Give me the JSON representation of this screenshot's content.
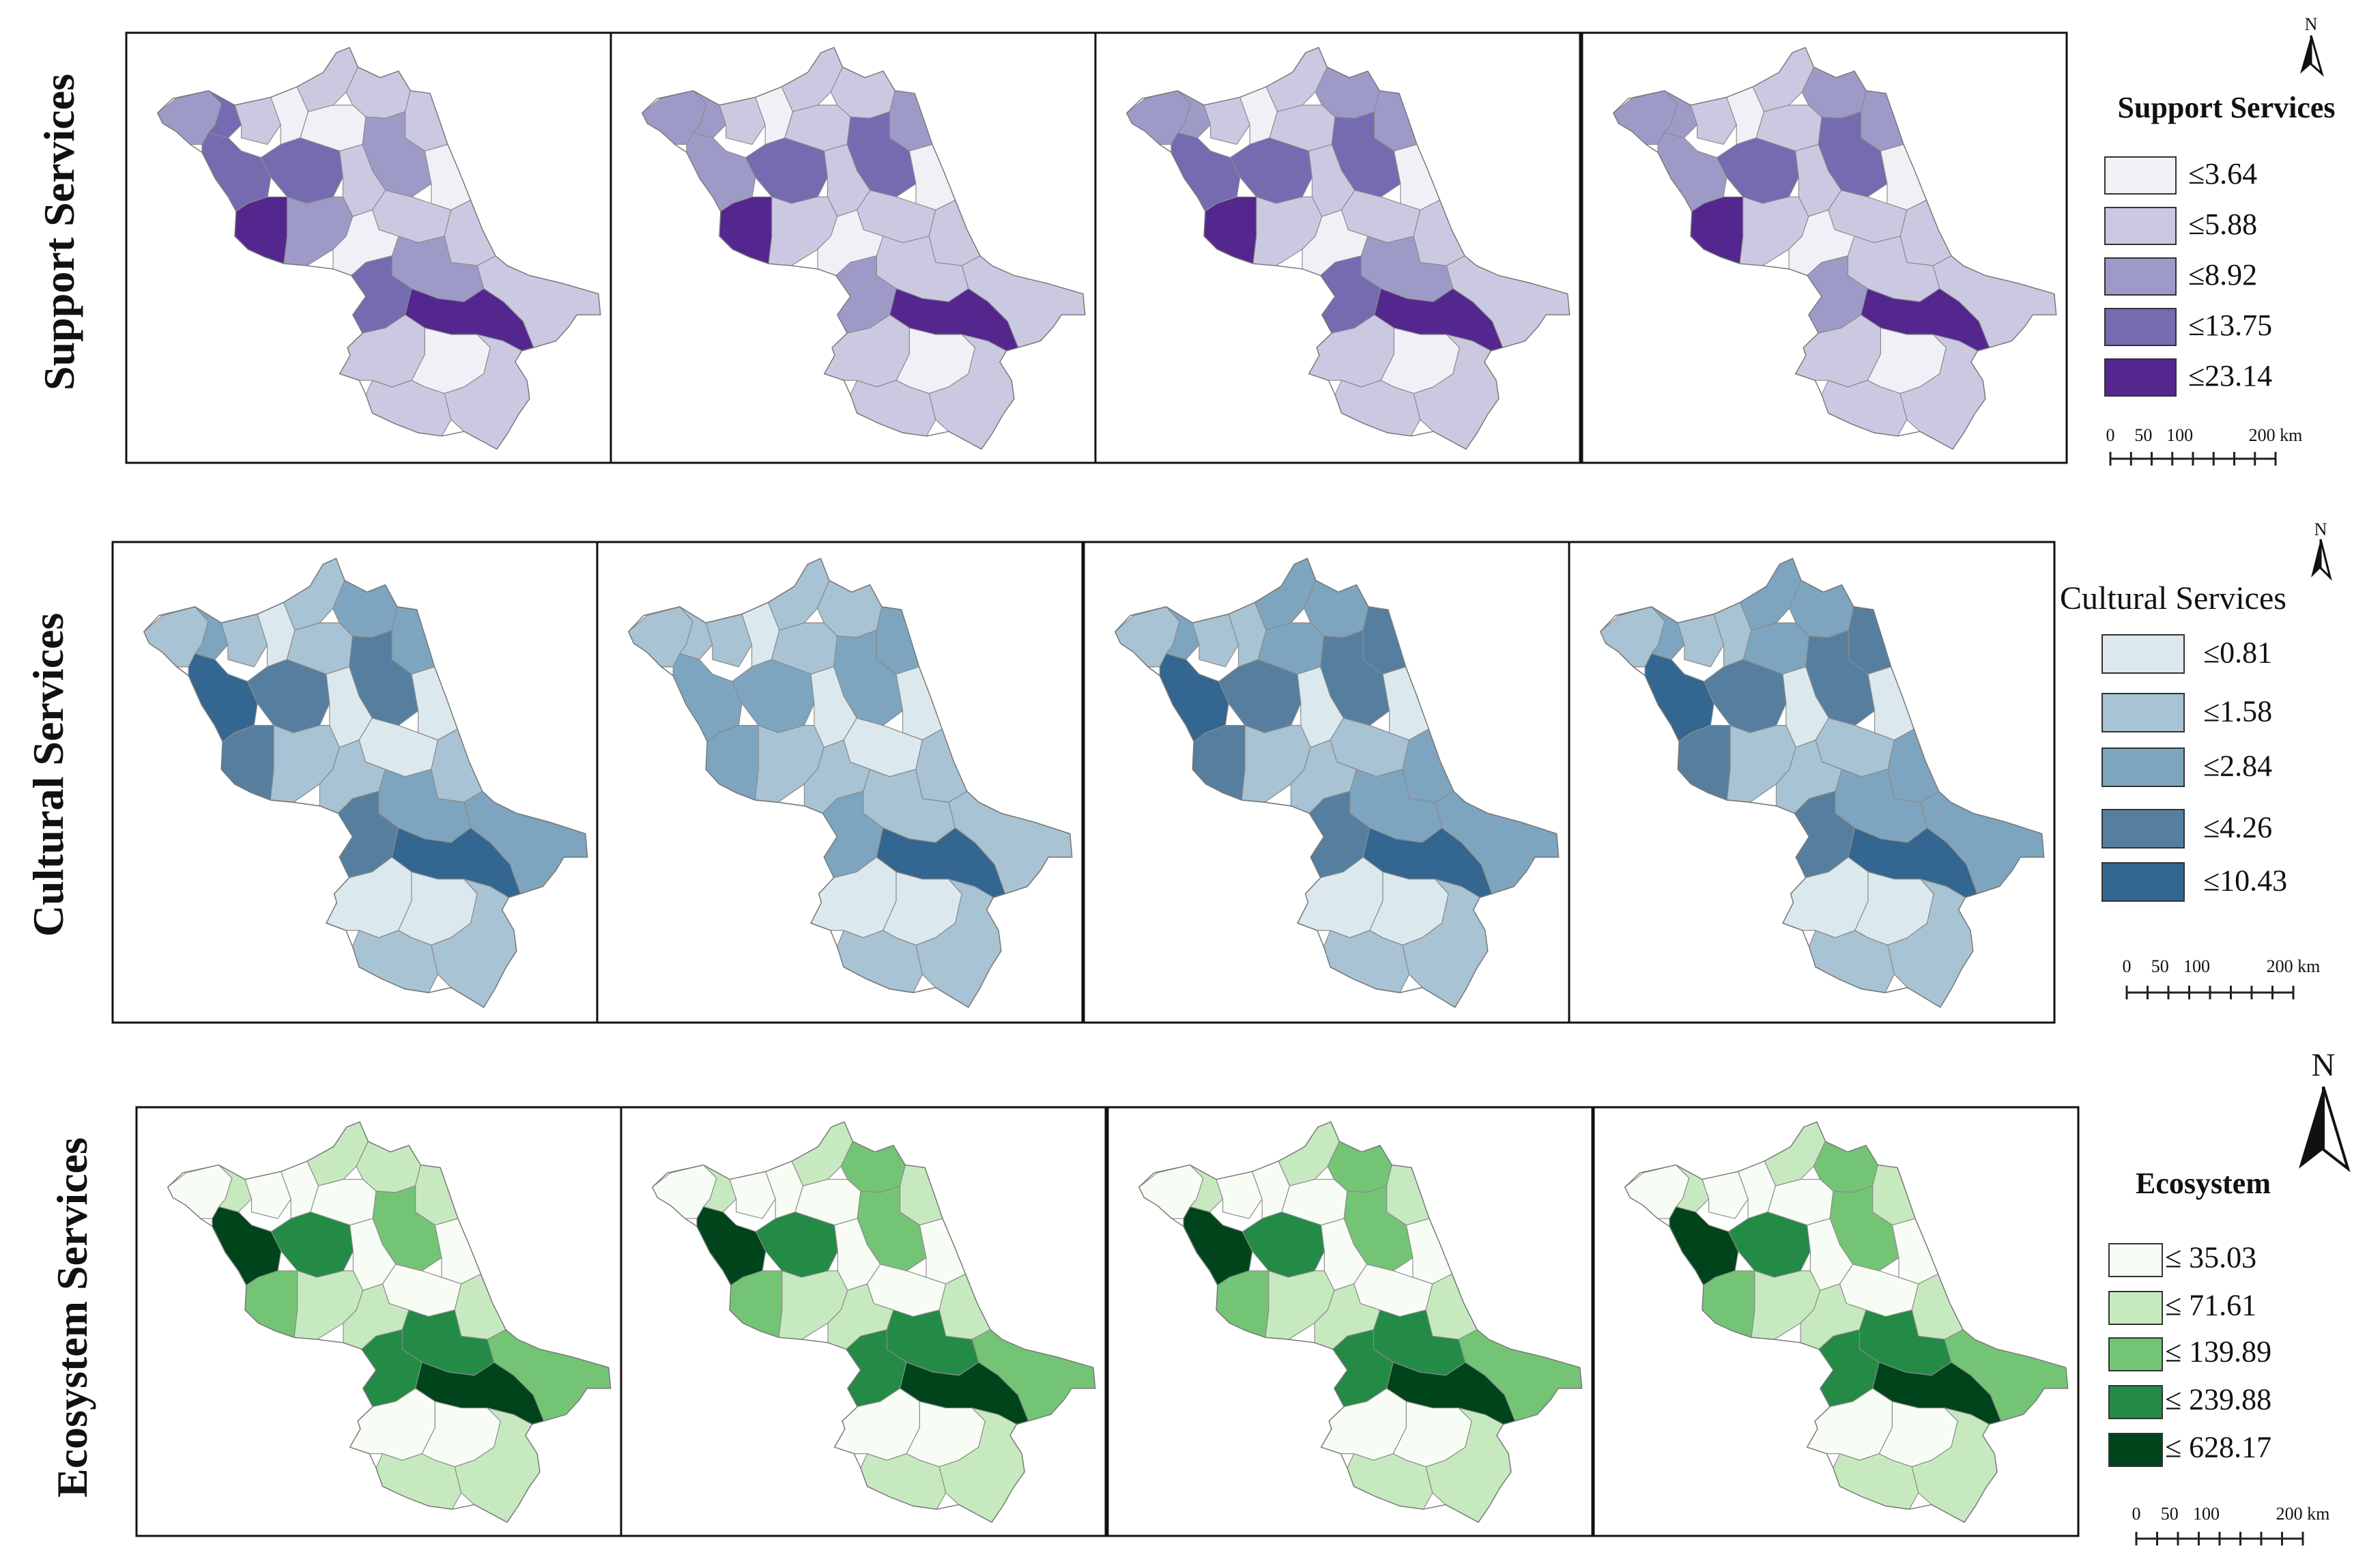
{
  "rows": [
    {
      "id": "support",
      "title": "Support Services",
      "legend_title": "Support Services",
      "legend_title_style": "bold",
      "legend_items": [
        {
          "label": "≤3.64",
          "color": "#f2f0f7"
        },
        {
          "label": "≤5.88",
          "color": "#cbc9e2"
        },
        {
          "label": "≤8.92",
          "color": "#9e9ac8"
        },
        {
          "label": "≤13.75",
          "color": "#756bb1"
        },
        {
          "label": "≤23.14",
          "color": "#54278f"
        }
      ],
      "north_label": "N",
      "scale_labels": [
        "0",
        "50",
        "100",
        "200 km"
      ],
      "panels": [
        {
          "levels": [
            2,
            3,
            1,
            0,
            1,
            1,
            0,
            1,
            2,
            3,
            3,
            4,
            1,
            0,
            1,
            2,
            0,
            1,
            1,
            2,
            3,
            4,
            1,
            0,
            1,
            1
          ]
        },
        {
          "levels": [
            2,
            2,
            1,
            0,
            1,
            1,
            1,
            2,
            3,
            2,
            3,
            4,
            1,
            0,
            1,
            1,
            0,
            1,
            1,
            1,
            2,
            4,
            1,
            0,
            1,
            1
          ]
        },
        {
          "levels": [
            2,
            2,
            1,
            0,
            1,
            2,
            1,
            2,
            3,
            3,
            3,
            4,
            1,
            0,
            1,
            1,
            0,
            1,
            1,
            2,
            3,
            4,
            1,
            0,
            1,
            1
          ]
        },
        {
          "levels": [
            2,
            2,
            1,
            0,
            1,
            2,
            1,
            2,
            3,
            2,
            3,
            4,
            1,
            0,
            1,
            1,
            0,
            1,
            1,
            1,
            2,
            4,
            1,
            0,
            1,
            1
          ]
        }
      ]
    },
    {
      "id": "cultural",
      "title": "Cultural  Services",
      "legend_title": "Cultural  Services",
      "legend_title_style": "plain",
      "legend_items": [
        {
          "label": "≤0.81",
          "color": "#dbe9ee"
        },
        {
          "label": "≤1.58",
          "color": "#a8c3d3"
        },
        {
          "label": "≤2.84",
          "color": "#7ea5bf"
        },
        {
          "label": "≤4.26",
          "color": "#567f9f"
        },
        {
          "label": "≤10.43",
          "color": "#336690"
        }
      ],
      "north_label": "N",
      "scale_labels": [
        "0",
        "50",
        "100",
        "200 km"
      ],
      "panels": [
        {
          "levels": [
            1,
            2,
            1,
            0,
            1,
            2,
            1,
            2,
            3,
            4,
            3,
            3,
            0,
            0,
            0,
            1,
            1,
            1,
            2,
            2,
            3,
            4,
            0,
            0,
            1,
            1
          ]
        },
        {
          "levels": [
            1,
            1,
            1,
            0,
            1,
            1,
            1,
            2,
            2,
            2,
            2,
            2,
            0,
            0,
            0,
            1,
            1,
            1,
            1,
            1,
            2,
            4,
            0,
            0,
            1,
            1
          ]
        },
        {
          "levels": [
            1,
            2,
            1,
            1,
            2,
            2,
            2,
            3,
            3,
            4,
            3,
            3,
            0,
            0,
            1,
            1,
            1,
            2,
            2,
            2,
            3,
            4,
            0,
            0,
            1,
            1
          ]
        },
        {
          "levels": [
            1,
            2,
            1,
            1,
            2,
            2,
            2,
            3,
            3,
            4,
            3,
            3,
            0,
            0,
            1,
            1,
            1,
            2,
            2,
            2,
            3,
            4,
            0,
            0,
            1,
            1
          ]
        }
      ]
    },
    {
      "id": "ecosystem",
      "title": "Ecosystem  Services",
      "legend_title": "Ecosystem",
      "legend_title_style": "bold",
      "legend_items": [
        {
          "label": "≤ 35.03",
          "color": "#f7fcf5"
        },
        {
          "label": "≤ 71.61",
          "color": "#c7e9c0"
        },
        {
          "label": "≤ 139.89",
          "color": "#74c476"
        },
        {
          "label": "≤  239.88",
          "color": "#238b45"
        },
        {
          "label": "≤ 628.17",
          "color": "#00441b"
        }
      ],
      "north_label": "N",
      "scale_labels": [
        "0",
        "50",
        "100",
        "200 km"
      ],
      "panels": [
        {
          "levels": [
            0,
            1,
            0,
            0,
            1,
            1,
            0,
            1,
            2,
            4,
            3,
            2,
            0,
            0,
            0,
            1,
            1,
            1,
            2,
            3,
            3,
            4,
            0,
            0,
            1,
            1
          ]
        },
        {
          "levels": [
            0,
            1,
            0,
            0,
            1,
            2,
            0,
            1,
            2,
            4,
            3,
            2,
            0,
            0,
            0,
            1,
            1,
            1,
            2,
            3,
            3,
            4,
            0,
            0,
            1,
            1
          ]
        },
        {
          "levels": [
            0,
            1,
            0,
            0,
            1,
            2,
            0,
            1,
            2,
            4,
            3,
            2,
            0,
            0,
            0,
            1,
            1,
            1,
            2,
            3,
            3,
            4,
            0,
            0,
            1,
            1
          ]
        },
        {
          "levels": [
            0,
            1,
            0,
            0,
            1,
            2,
            0,
            1,
            2,
            4,
            3,
            2,
            0,
            0,
            0,
            1,
            1,
            1,
            2,
            3,
            3,
            4,
            0,
            0,
            1,
            1
          ]
        }
      ]
    }
  ]
}
